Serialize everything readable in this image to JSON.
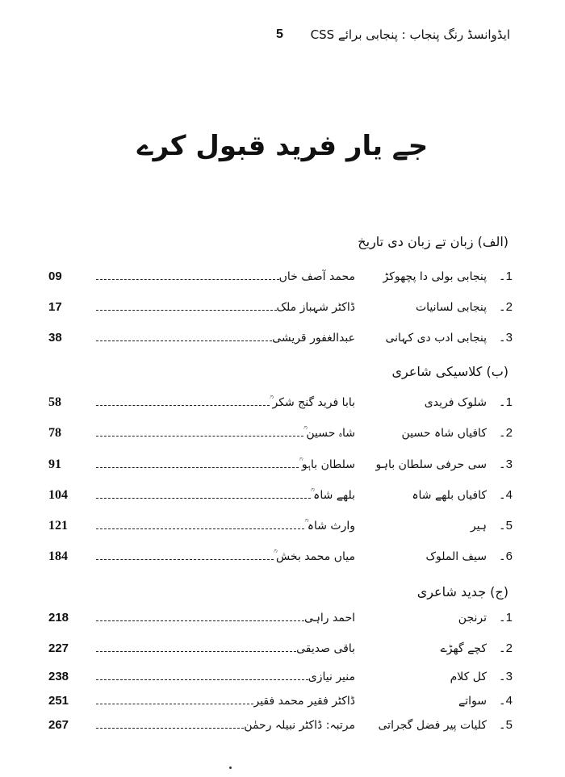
{
  "header": {
    "running_title": "ایڈوانسڈ رنگ پنجاب : پنجابی برائے CSS",
    "page_number": "5"
  },
  "title": "جے یار فرید قبول کرے",
  "sections": [
    {
      "heading": "(الف) زبان تے زبان دی تاریخ",
      "entries": [
        {
          "num": "1۔",
          "title": "پنجابی بولی دا پچھوکڑ",
          "author": "محمد آصف خاں",
          "page": "09"
        },
        {
          "num": "2۔",
          "title": "پنجابی لسانیات",
          "author": "ڈاکٹر شہباز ملک",
          "page": "17"
        },
        {
          "num": "3۔",
          "title": "پنجابی ادب دی کہانی",
          "author": "عبدالغفور قریشی",
          "page": "38"
        }
      ]
    },
    {
      "heading": "(ب)    کلاسیکی شاعری",
      "entries": [
        {
          "num": "1۔",
          "title": "شلوک فریدی",
          "author": "بابا فرید گنج شکر ؒ",
          "page": "58"
        },
        {
          "num": "2۔",
          "title": "کافیاں شاہ حسین",
          "author": "شاہ حسین ؒ",
          "page": "78"
        },
        {
          "num": "3۔",
          "title": "سی حرفی سلطان باہو",
          "author": "سلطان باہو ؒ",
          "page": "91"
        },
        {
          "num": "4۔",
          "title": "کافیاں بلھے شاہ",
          "author": "بلھے شاہ ؒ",
          "page": "104"
        },
        {
          "num": "5۔",
          "title": "ہیر",
          "author": "وارث شاہ ؒ",
          "page": "121"
        },
        {
          "num": "6۔",
          "title": "سیف الملوک",
          "author": "میاں محمد بخش ؒ",
          "page": "184"
        }
      ]
    },
    {
      "heading": "(ج) جدید شاعری",
      "entries": [
        {
          "num": "1۔",
          "title": "ترنجن",
          "author": "احمد راہی",
          "page": "218"
        },
        {
          "num": "2۔",
          "title": "کچے گھڑے",
          "author": "باقی صدیقی",
          "page": "227"
        },
        {
          "num": "3۔",
          "title": "کل کلام",
          "author": "منیر نیازی",
          "page": "238"
        },
        {
          "num": "4۔",
          "title": "سواتے",
          "author": "ڈاکٹر فقیر محمد فقیر",
          "page": "251"
        },
        {
          "num": "5۔",
          "title": "کلیات پیر فضل گجراتی",
          "author": "مرتبہ: ڈاکٹر نبیلہ رحمٰن",
          "page": "267"
        }
      ]
    }
  ]
}
